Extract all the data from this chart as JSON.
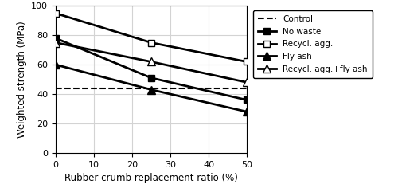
{
  "x": [
    0,
    25,
    50
  ],
  "control_y": 44,
  "no_waste": [
    78,
    51,
    36
  ],
  "recycl_agg": [
    95,
    75,
    62
  ],
  "fly_ash": [
    60,
    43,
    28
  ],
  "recycl_agg_fly_ash": [
    75,
    62,
    48
  ],
  "xlabel": "Rubber crumb replacement ratio (%)",
  "ylabel": "Weighted strength (MPa)",
  "xlim": [
    0,
    50
  ],
  "ylim": [
    0,
    100
  ],
  "xticks": [
    0,
    10,
    20,
    30,
    40,
    50
  ],
  "yticks": [
    0,
    20,
    40,
    60,
    80,
    100
  ],
  "legend_labels": [
    "Control",
    "No waste",
    "Recycl. agg.",
    "Fly ash",
    "Recycl. agg.+fly ash"
  ]
}
